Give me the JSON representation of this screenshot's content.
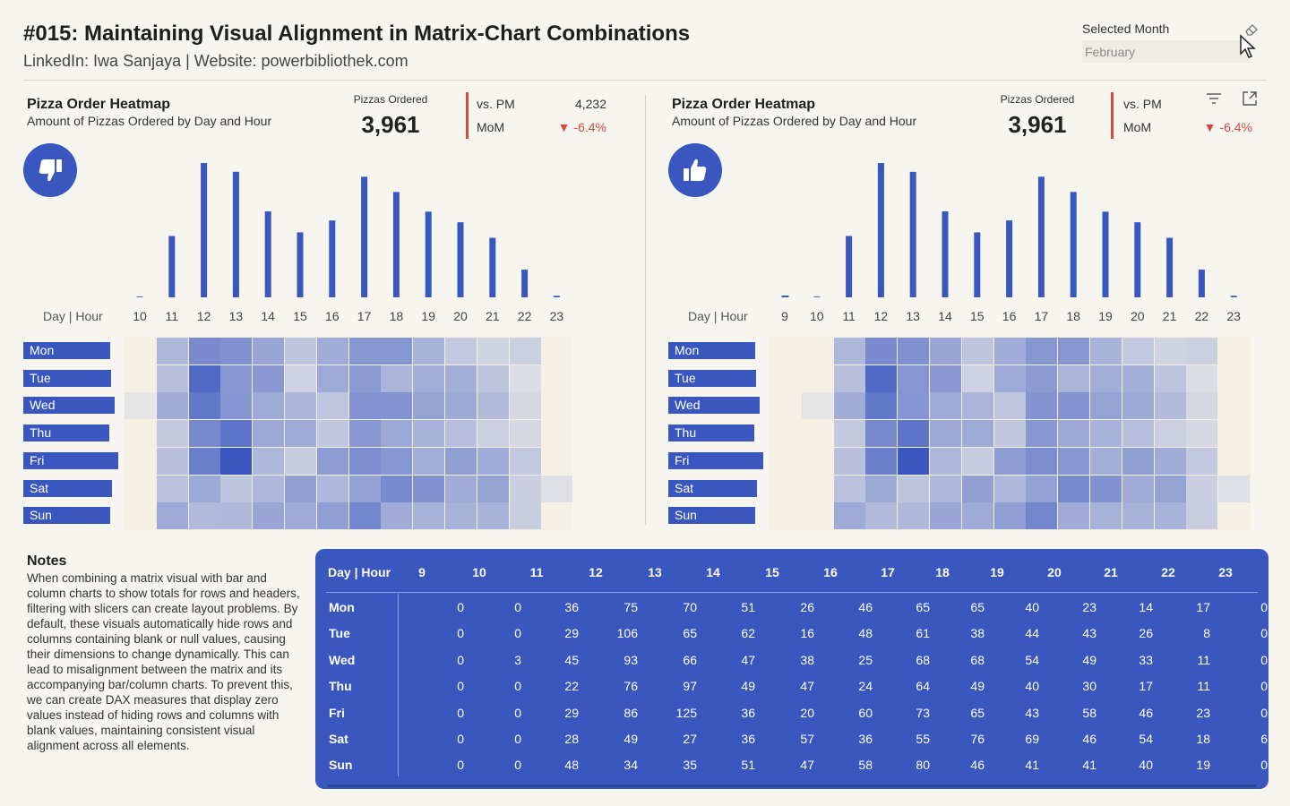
{
  "header": {
    "title": "#015: Maintaining Visual Alignment in Matrix-Chart Combinations",
    "subtitle": "LinkedIn: Iwa Sanjaya | Website: powerbibliothek.com"
  },
  "slicer": {
    "label": "Selected Month",
    "value": "February"
  },
  "panel": {
    "title": "Pizza Order Heatmap",
    "subtitle": "Amount of Pizzas Ordered by Day and Hour",
    "kpi_label": "Pizzas Ordered",
    "kpi_value": "3,961",
    "vs_label": "vs. PM",
    "pm_value": "4,232",
    "mom_label": "MoM",
    "mom_value": "-6.4%",
    "axis_label": "Day",
    "axis_label2": "Hour"
  },
  "left_panel": {
    "icon": "thumbs-down-icon",
    "hours": [
      "10",
      "11",
      "12",
      "13",
      "14",
      "15",
      "16",
      "17",
      "18",
      "19",
      "20",
      "21",
      "22",
      "23"
    ]
  },
  "right_panel": {
    "icon": "thumbs-up-icon",
    "hours": [
      "9",
      "10",
      "11",
      "12",
      "13",
      "14",
      "15",
      "16",
      "17",
      "18",
      "19",
      "20",
      "21",
      "22",
      "23"
    ]
  },
  "days": [
    "Mon",
    "Tue",
    "Wed",
    "Thu",
    "Fri",
    "Sat",
    "Sun"
  ],
  "notes": {
    "heading": "Notes",
    "body": "When combining a matrix visual with bar and column charts to show totals for rows and headers, filtering with slicers can create layout problems. By default, these visuals automatically hide rows and columns containing blank or null values, causing their dimensions to change dynamically. This can lead to misalignment between the matrix and its accompanying bar/column charts. To prevent this, we can create DAX measures that display zero values instead of hiding rows and columns with blank values, maintaining consistent visual alignment across all elements."
  },
  "table": {
    "corner1": "Day",
    "corner2": "Hour",
    "hours": [
      "9",
      "10",
      "11",
      "12",
      "13",
      "14",
      "15",
      "16",
      "17",
      "18",
      "19",
      "20",
      "21",
      "22",
      "23"
    ],
    "rows": [
      {
        "day": "Mon",
        "values": [
          0,
          0,
          36,
          75,
          70,
          51,
          26,
          46,
          65,
          65,
          40,
          23,
          14,
          17,
          0
        ]
      },
      {
        "day": "Tue",
        "values": [
          0,
          0,
          29,
          106,
          65,
          62,
          16,
          48,
          61,
          38,
          44,
          43,
          26,
          8,
          0
        ]
      },
      {
        "day": "Wed",
        "values": [
          0,
          3,
          45,
          93,
          66,
          47,
          38,
          25,
          68,
          68,
          54,
          49,
          33,
          11,
          0
        ]
      },
      {
        "day": "Thu",
        "values": [
          0,
          0,
          22,
          76,
          97,
          49,
          47,
          24,
          64,
          49,
          40,
          30,
          17,
          11,
          0
        ]
      },
      {
        "day": "Fri",
        "values": [
          0,
          0,
          29,
          86,
          125,
          36,
          20,
          60,
          73,
          65,
          43,
          58,
          46,
          23,
          0
        ]
      },
      {
        "day": "Sat",
        "values": [
          0,
          0,
          28,
          49,
          27,
          36,
          57,
          36,
          55,
          76,
          69,
          46,
          54,
          18,
          6
        ]
      },
      {
        "day": "Sun",
        "values": [
          0,
          0,
          48,
          34,
          35,
          51,
          47,
          58,
          80,
          46,
          41,
          41,
          40,
          19,
          0
        ]
      }
    ]
  },
  "colors": {
    "accent": "#3a57c0",
    "negative": "#d24a3c",
    "background": "#f7f5f0"
  }
}
